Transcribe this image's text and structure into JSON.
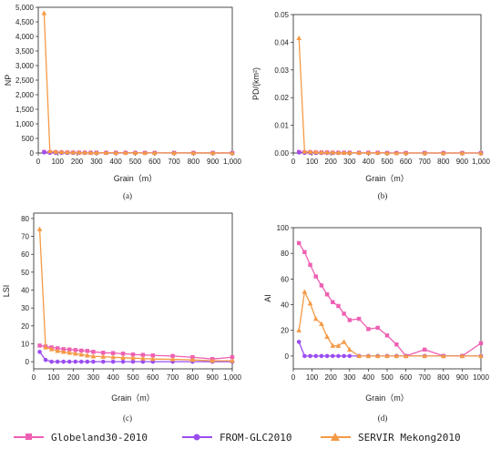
{
  "colors": {
    "globeland": "#ee5fb3",
    "fromglc": "#9b4df0",
    "servir": "#f59a45"
  },
  "legend": [
    {
      "label": "Globeland30-2010",
      "color": "#ee5fb3",
      "marker": "square"
    },
    {
      "label": "FROM-GLC2010",
      "color": "#9b4df0",
      "marker": "circle"
    },
    {
      "label": "SERVIR Mekong2010",
      "color": "#f59a45",
      "marker": "triangle"
    }
  ],
  "chart_data": [
    {
      "type": "line",
      "caption": "(a)",
      "xlabel": "Grain（m）",
      "ylabel": "NP",
      "xlim": [
        0,
        1000
      ],
      "ylim": [
        0,
        5000
      ],
      "xticks": [
        0,
        100,
        200,
        300,
        400,
        500,
        600,
        700,
        800,
        900,
        1000
      ],
      "xtick_labels": [
        "0",
        "100",
        "200",
        "300",
        "400",
        "500",
        "600",
        "700",
        "800",
        "900",
        "1,000"
      ],
      "yticks": [
        0,
        500,
        1000,
        1500,
        2000,
        2500,
        3000,
        3500,
        4000,
        4500,
        5000
      ],
      "ytick_labels": [
        "0",
        "500",
        "1,000",
        "1,500",
        "2,000",
        "2,500",
        "3,000",
        "3,500",
        "4,000",
        "4,500",
        "5,000"
      ],
      "series": [
        {
          "name": "Globeland30-2010",
          "x": [
            30,
            60,
            90,
            120,
            150,
            180,
            210,
            240,
            270,
            300,
            350,
            400,
            450,
            500,
            550,
            600,
            700,
            800,
            900,
            1000
          ],
          "y": [
            40,
            30,
            25,
            20,
            18,
            15,
            13,
            12,
            10,
            9,
            8,
            7,
            6,
            5,
            4,
            4,
            3,
            3,
            2,
            2
          ]
        },
        {
          "name": "FROM-GLC2010",
          "x": [
            30,
            60,
            90,
            120,
            150,
            180,
            210,
            240,
            270,
            300,
            350,
            400,
            450,
            500,
            550,
            600,
            700,
            800,
            900,
            1000
          ],
          "y": [
            20,
            8,
            6,
            5,
            4,
            4,
            3,
            3,
            3,
            2,
            2,
            2,
            2,
            1,
            1,
            1,
            1,
            1,
            1,
            1
          ]
        },
        {
          "name": "SERVIR Mekong2010",
          "x": [
            30,
            60,
            90,
            120,
            150,
            180,
            210,
            240,
            270,
            300,
            350,
            400,
            450,
            500,
            550,
            600,
            700,
            800,
            900,
            1000
          ],
          "y": [
            4800,
            60,
            40,
            30,
            25,
            20,
            18,
            15,
            12,
            10,
            9,
            8,
            7,
            6,
            5,
            4,
            3,
            2,
            2,
            1
          ]
        }
      ]
    },
    {
      "type": "line",
      "caption": "(b)",
      "xlabel": "Grain（m）",
      "ylabel": "PD/(km²)",
      "xlim": [
        0,
        1000
      ],
      "ylim": [
        0,
        0.05
      ],
      "xticks": [
        0,
        100,
        200,
        300,
        400,
        500,
        600,
        700,
        800,
        900,
        1000
      ],
      "xtick_labels": [
        "0",
        "100",
        "200",
        "300",
        "400",
        "500",
        "600",
        "700",
        "800",
        "900",
        "1,000"
      ],
      "yticks": [
        0,
        0.01,
        0.02,
        0.03,
        0.04,
        0.05
      ],
      "ytick_labels": [
        "0.00",
        "0.01",
        "0.02",
        "0.03",
        "0.04",
        "0.05"
      ],
      "series": [
        {
          "name": "Globeland30-2010",
          "x": [
            30,
            60,
            90,
            120,
            150,
            180,
            210,
            240,
            270,
            300,
            350,
            400,
            450,
            500,
            550,
            600,
            700,
            800,
            900,
            1000
          ],
          "y": [
            0.0004,
            0.0003,
            0.0003,
            0.0002,
            0.0002,
            0.0002,
            0.0001,
            0.0001,
            0.0001,
            0.0001,
            0.0001,
            0.0001,
            0.0001,
            0,
            0,
            0,
            0,
            0,
            0,
            0
          ]
        },
        {
          "name": "FROM-GLC2010",
          "x": [
            30,
            60,
            90,
            120,
            150,
            180,
            210,
            240,
            270,
            300,
            350,
            400,
            450,
            500,
            550,
            600,
            700,
            800,
            900,
            1000
          ],
          "y": [
            0.0002,
            0.0001,
            0.0001,
            0,
            0,
            0,
            0,
            0,
            0,
            0,
            0,
            0,
            0,
            0,
            0,
            0,
            0,
            0,
            0,
            0
          ]
        },
        {
          "name": "SERVIR Mekong2010",
          "x": [
            30,
            60,
            90,
            120,
            150,
            180,
            210,
            240,
            270,
            300,
            350,
            400,
            450,
            500,
            550,
            600,
            700,
            800,
            900,
            1000
          ],
          "y": [
            0.0415,
            0.0005,
            0.0004,
            0.0003,
            0.0002,
            0.0002,
            0.0002,
            0.0001,
            0.0001,
            0.0001,
            0.0001,
            0.0001,
            0.0001,
            0,
            0,
            0,
            0,
            0,
            0,
            0
          ]
        }
      ]
    },
    {
      "type": "line",
      "caption": "(c)",
      "xlabel": "Grain（m）",
      "ylabel": "LSI",
      "xlim": [
        0,
        1000
      ],
      "ylim": [
        -4,
        83
      ],
      "xticks": [
        0,
        100,
        200,
        300,
        400,
        500,
        600,
        700,
        800,
        900,
        1000
      ],
      "xtick_labels": [
        "0",
        "100",
        "200",
        "300",
        "400",
        "500",
        "600",
        "700",
        "800",
        "900",
        "1,000"
      ],
      "yticks": [
        0,
        10,
        20,
        30,
        40,
        50,
        60,
        70,
        80
      ],
      "ytick_labels": [
        "0",
        "10",
        "20",
        "30",
        "40",
        "50",
        "60",
        "70",
        "80"
      ],
      "series": [
        {
          "name": "Globeland30-2010",
          "x": [
            30,
            60,
            90,
            120,
            150,
            180,
            210,
            240,
            270,
            300,
            350,
            400,
            450,
            500,
            550,
            600,
            700,
            800,
            900,
            1000
          ],
          "y": [
            9,
            8.5,
            8,
            7.5,
            7,
            6.8,
            6.5,
            6.2,
            6,
            5.5,
            5,
            4.8,
            4.5,
            4,
            3.8,
            3.5,
            3.2,
            2.5,
            1.5,
            2.5
          ]
        },
        {
          "name": "FROM-GLC2010",
          "x": [
            30,
            60,
            90,
            120,
            150,
            180,
            210,
            240,
            270,
            300,
            350,
            400,
            450,
            500,
            550,
            600,
            700,
            800,
            900,
            1000
          ],
          "y": [
            5.5,
            1,
            0,
            0,
            0,
            0,
            0,
            0,
            0,
            0,
            0,
            0,
            0,
            0,
            0,
            0,
            0,
            0,
            0,
            0
          ]
        },
        {
          "name": "SERVIR Mekong2010",
          "x": [
            30,
            60,
            90,
            120,
            150,
            180,
            210,
            240,
            270,
            300,
            350,
            400,
            450,
            500,
            550,
            600,
            700,
            800,
            900,
            1000
          ],
          "y": [
            74,
            8,
            7,
            6,
            5.5,
            5,
            4.5,
            4,
            3.5,
            3,
            2.8,
            2.5,
            2.2,
            2,
            1.8,
            1.5,
            1.3,
            1,
            0.5,
            0.5
          ]
        }
      ]
    },
    {
      "type": "line",
      "caption": "(d)",
      "xlabel": "Grain（m）",
      "ylabel": "AI",
      "xlim": [
        0,
        1000
      ],
      "ylim": [
        -10,
        100
      ],
      "xticks": [
        0,
        100,
        200,
        300,
        400,
        500,
        600,
        700,
        800,
        900,
        1000
      ],
      "xtick_labels": [
        "0",
        "100",
        "200",
        "300",
        "400",
        "500",
        "600",
        "700",
        "800",
        "900",
        "1000"
      ],
      "yticks": [
        0,
        20,
        40,
        60,
        80,
        100
      ],
      "ytick_labels": [
        "0",
        "20",
        "40",
        "60",
        "80",
        "100"
      ],
      "series": [
        {
          "name": "Globeland30-2010",
          "x": [
            30,
            60,
            90,
            120,
            150,
            180,
            210,
            240,
            270,
            300,
            350,
            400,
            450,
            500,
            550,
            600,
            700,
            800,
            900,
            1000
          ],
          "y": [
            88,
            81,
            71,
            62,
            55,
            48,
            42,
            39,
            33,
            28,
            29,
            21,
            22,
            16,
            9,
            0,
            5,
            0,
            0,
            10
          ]
        },
        {
          "name": "FROM-GLC2010",
          "x": [
            30,
            60,
            90,
            120,
            150,
            180,
            210,
            240,
            270,
            300,
            350,
            400,
            450,
            500,
            550,
            600,
            700,
            800,
            900,
            1000
          ],
          "y": [
            11,
            0,
            0,
            0,
            0,
            0,
            0,
            0,
            0,
            0,
            0,
            0,
            0,
            0,
            0,
            0,
            0,
            0,
            0,
            0
          ]
        },
        {
          "name": "SERVIR Mekong2010",
          "x": [
            30,
            60,
            90,
            120,
            150,
            180,
            210,
            240,
            270,
            300,
            350,
            400,
            450,
            500,
            550,
            600,
            700,
            800,
            900,
            1000
          ],
          "y": [
            20,
            50,
            41,
            29,
            25,
            15,
            8,
            8,
            11,
            5,
            0,
            0,
            0,
            0,
            0,
            0,
            0,
            0,
            0,
            0
          ]
        }
      ]
    }
  ]
}
